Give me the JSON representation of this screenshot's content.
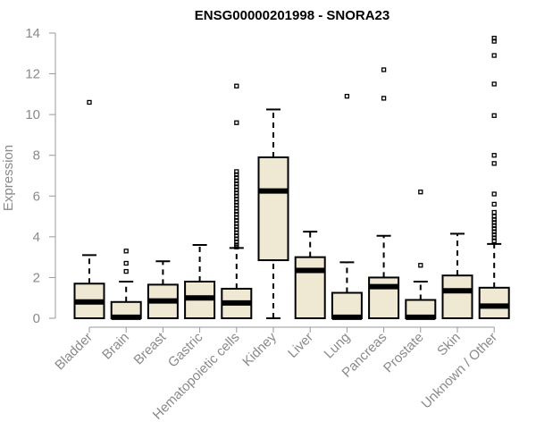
{
  "chart_data": {
    "type": "boxplot",
    "title": "ENSG00000201998 - SNORA23",
    "xlabel": "",
    "ylabel": "Expression",
    "ylim": [
      0,
      14
    ],
    "yticks": [
      0,
      2,
      4,
      6,
      8,
      10,
      12,
      14
    ],
    "colors": {
      "box_fill": "#efe8d2",
      "stroke": "#000000",
      "axis_text": "#8a8a8a",
      "axis_line": "#999999"
    },
    "categories": [
      "Bladder",
      "Brain",
      "Breast",
      "Gastric",
      "Hematopoietic cells",
      "Kidney",
      "Liver",
      "Lung",
      "Pancreas",
      "Prostate",
      "Skin",
      "Unknown / Other"
    ],
    "boxes": [
      {
        "label": "Bladder",
        "whisker_low": 0,
        "q1": 0,
        "median": 0.8,
        "q3": 1.7,
        "whisker_high": 3.1,
        "outliers": [
          10.6
        ]
      },
      {
        "label": "Brain",
        "whisker_low": 0,
        "q1": 0,
        "median": 0.05,
        "q3": 0.8,
        "whisker_high": 1.8,
        "outliers": [
          2.3,
          2.7,
          3.3
        ]
      },
      {
        "label": "Breast",
        "whisker_low": 0,
        "q1": 0,
        "median": 0.85,
        "q3": 1.65,
        "whisker_high": 2.8,
        "outliers": []
      },
      {
        "label": "Gastric",
        "whisker_low": 0,
        "q1": 0,
        "median": 1.0,
        "q3": 1.8,
        "whisker_high": 3.6,
        "outliers": []
      },
      {
        "label": "Hematopoietic cells",
        "whisker_low": 0,
        "q1": 0,
        "median": 0.75,
        "q3": 1.45,
        "whisker_high": 3.45,
        "outliers": [
          3.5,
          3.6,
          3.75,
          3.9,
          4.05,
          4.2,
          4.35,
          4.5,
          4.65,
          4.8,
          4.95,
          5.1,
          5.25,
          5.4,
          5.55,
          5.7,
          5.85,
          6.0,
          6.15,
          6.3,
          6.45,
          6.6,
          6.75,
          6.9,
          7.05,
          7.2,
          9.6,
          11.4
        ]
      },
      {
        "label": "Kidney",
        "whisker_low": 0,
        "q1": 2.85,
        "median": 6.25,
        "q3": 7.9,
        "whisker_high": 10.25,
        "outliers": []
      },
      {
        "label": "Liver",
        "whisker_low": 0,
        "q1": 0,
        "median": 2.35,
        "q3": 3.0,
        "whisker_high": 4.25,
        "outliers": []
      },
      {
        "label": "Lung",
        "whisker_low": 0,
        "q1": 0,
        "median": 0.05,
        "q3": 1.25,
        "whisker_high": 2.75,
        "outliers": [
          10.9
        ]
      },
      {
        "label": "Pancreas",
        "whisker_low": 0,
        "q1": 0,
        "median": 1.55,
        "q3": 2.0,
        "whisker_high": 4.05,
        "outliers": [
          10.8,
          12.2
        ]
      },
      {
        "label": "Prostate",
        "whisker_low": 0,
        "q1": 0,
        "median": 0.05,
        "q3": 0.9,
        "whisker_high": 1.8,
        "outliers": [
          2.6,
          6.2
        ]
      },
      {
        "label": "Skin",
        "whisker_low": 0,
        "q1": 0,
        "median": 1.35,
        "q3": 2.1,
        "whisker_high": 4.15,
        "outliers": []
      },
      {
        "label": "Unknown / Other",
        "whisker_low": 0,
        "q1": 0,
        "median": 0.6,
        "q3": 1.5,
        "whisker_high": 3.65,
        "outliers": [
          3.8,
          3.95,
          4.1,
          4.25,
          4.4,
          4.55,
          4.7,
          4.85,
          5.0,
          5.2,
          5.6,
          6.1,
          7.6,
          8.0,
          9.95,
          11.5,
          12.9,
          13.6,
          13.75
        ]
      }
    ]
  }
}
